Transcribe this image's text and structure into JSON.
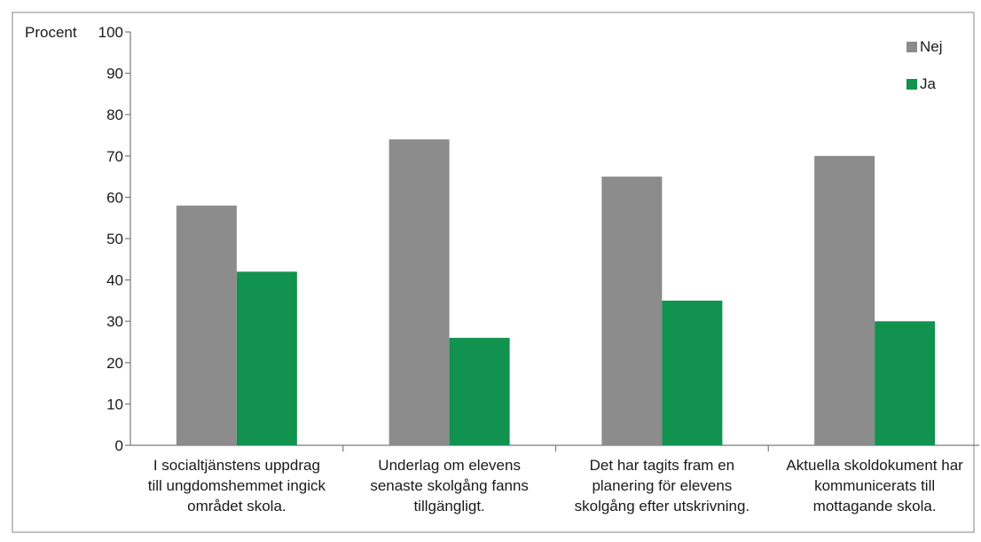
{
  "chart_data": {
    "type": "bar",
    "ylabel": "Procent",
    "ylim": [
      0,
      100
    ],
    "yticks": [
      0,
      10,
      20,
      30,
      40,
      50,
      60,
      70,
      80,
      90,
      100
    ],
    "categories": [
      [
        "I socialtjänstens uppdrag",
        "till ungdomshemmet ingick",
        "området skola."
      ],
      [
        "Underlag om elevens",
        "senaste skolgång  fanns",
        "tillgängligt."
      ],
      [
        "Det har  tagits fram en",
        "planering för elevens",
        "skolgång efter utskrivning."
      ],
      [
        "Aktuella skoldokument har",
        "kommunicerats till",
        "mottagande skola."
      ]
    ],
    "series": [
      {
        "name": "Nej",
        "values": [
          58,
          74,
          65,
          70
        ],
        "color": "#8c8c8c"
      },
      {
        "name": "Ja",
        "values": [
          42,
          26,
          35,
          30
        ],
        "color": "#11924f"
      }
    ],
    "legend": "top-right",
    "grid": false
  }
}
